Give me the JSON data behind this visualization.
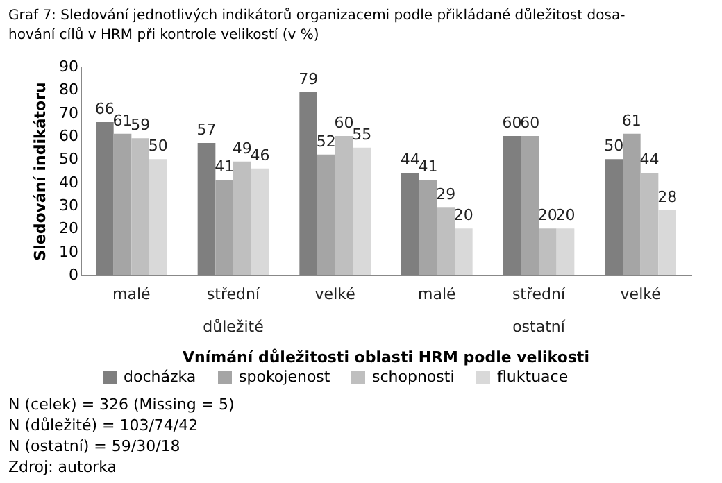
{
  "chart_data": {
    "type": "bar",
    "title": "Graf 7: Sledování jednotlivých indikátorů organizacemi podle přikládané důležitost dosa-\nhování cílů v HRM při kontrole velikostí (v %)",
    "xlabel": "Vnímání důležitosti oblasti HRM podle velikosti",
    "ylabel": "Sledování indikátoru",
    "categories": [
      "malé",
      "střední",
      "velké",
      "malé",
      "střední",
      "velké"
    ],
    "series": [
      {
        "name": "docházka",
        "color": "#7f7f7f",
        "values": [
          66,
          57,
          79,
          44,
          60,
          50
        ]
      },
      {
        "name": "spokojenost",
        "color": "#a5a5a5",
        "values": [
          61,
          41,
          52,
          41,
          60,
          61
        ]
      },
      {
        "name": "schopnosti",
        "color": "#bfbfbf",
        "values": [
          59,
          49,
          60,
          29,
          20,
          44
        ]
      },
      {
        "name": "fluktuace",
        "color": "#d9d9d9",
        "values": [
          50,
          46,
          55,
          20,
          20,
          28
        ]
      }
    ],
    "ylim": [
      0,
      90
    ],
    "yticks": [
      0,
      10,
      20,
      30,
      40,
      50,
      60,
      70,
      80,
      90
    ],
    "data_labels": true,
    "grid": false,
    "legend": "bottom",
    "annotations": [
      "důležité",
      "ostatní",
      "N (celek) = 326 (Missing = 5)",
      "N (důležité) = 103/74/42",
      "N (ostatní) = 59/30/18",
      "Zdroj: autorka"
    ]
  }
}
